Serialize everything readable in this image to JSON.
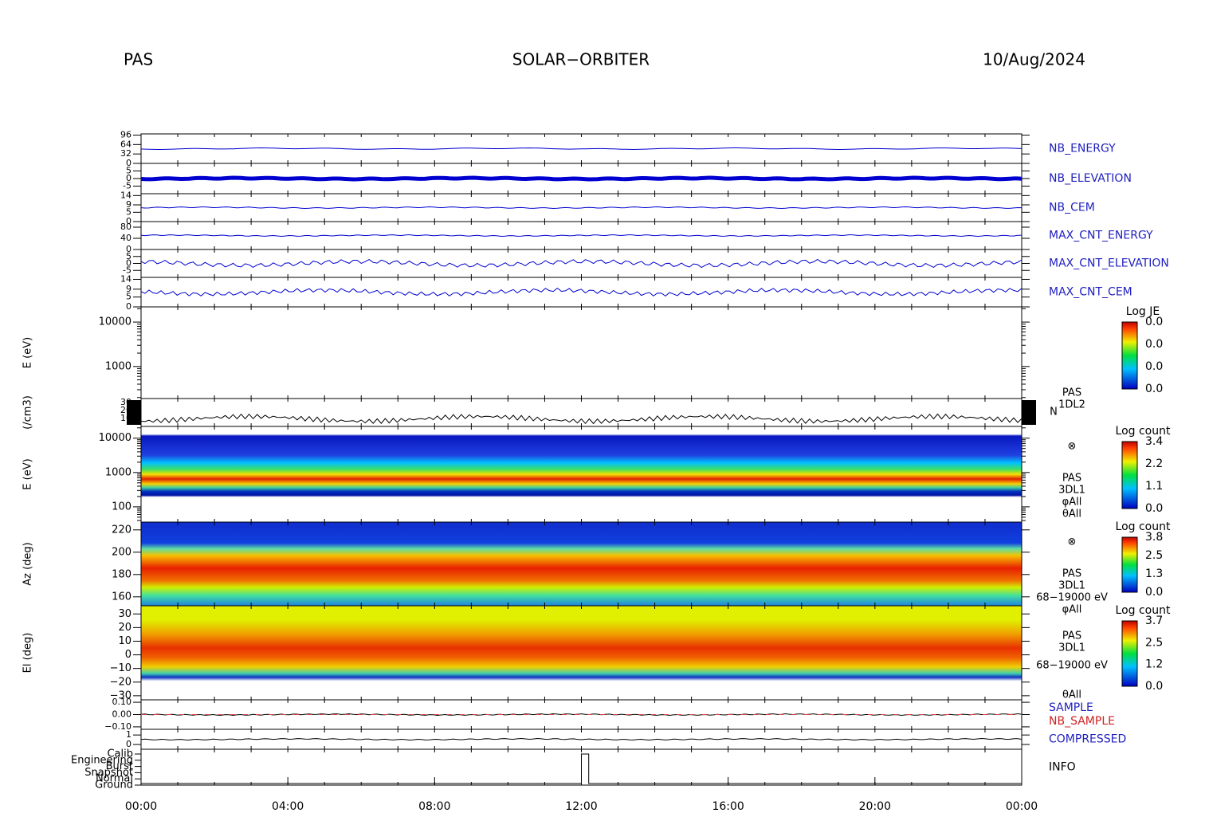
{
  "header": {
    "left": "PAS",
    "center": "SOLAR−ORBITER",
    "right": "10/Aug/2024"
  },
  "time_axis": {
    "xlim": [
      0,
      24
    ],
    "xticks": [
      {
        "value": 0,
        "label": "00:00"
      },
      {
        "value": 4,
        "label": "04:00"
      },
      {
        "value": 8,
        "label": "08:00"
      },
      {
        "value": 12,
        "label": "12:00"
      },
      {
        "value": 16,
        "label": "16:00"
      },
      {
        "value": 20,
        "label": "20:00"
      },
      {
        "value": 24,
        "label": "00:00"
      }
    ]
  },
  "panels": [
    {
      "kind": "line",
      "labels": [
        "NB_ENERGY"
      ],
      "label_colors": [
        "#2020c0"
      ],
      "ylim": [
        0,
        100
      ],
      "yticks": [
        0,
        32,
        64,
        96
      ]
    },
    {
      "kind": "line",
      "labels": [
        "NB_ELEVATION"
      ],
      "label_colors": [
        "#2020c0"
      ],
      "ylim": [
        -10,
        10
      ],
      "yticks": [
        -5,
        0,
        5
      ]
    },
    {
      "kind": "line",
      "labels": [
        "NB_CEM"
      ],
      "label_colors": [
        "#2020c0"
      ],
      "ylim": [
        0,
        15
      ],
      "yticks": [
        0,
        5,
        9,
        14
      ]
    },
    {
      "kind": "line",
      "labels": [
        "MAX_CNT_ENERGY"
      ],
      "label_colors": [
        "#2020c0"
      ],
      "ylim": [
        0,
        100
      ],
      "yticks": [
        0,
        40,
        80
      ]
    },
    {
      "kind": "line",
      "labels": [
        "MAX_CNT_ELEVATION"
      ],
      "label_colors": [
        "#2020c0"
      ],
      "ylim": [
        -10,
        10
      ],
      "yticks": [
        -5,
        0,
        5
      ]
    },
    {
      "kind": "line",
      "labels": [
        "MAX_CNT_CEM"
      ],
      "label_colors": [
        "#2020c0"
      ],
      "ylim": [
        0,
        15
      ],
      "yticks": [
        0,
        5,
        9,
        14
      ]
    },
    {
      "kind": "empty",
      "ytitle": "E (eV)",
      "log": true,
      "ylim": [
        190,
        22000
      ],
      "yticks": [
        1000,
        10000
      ],
      "colorbar": {
        "title": "Log JE",
        "labels": [
          "0.0",
          "0.0",
          "0.0",
          "0.0"
        ]
      }
    },
    {
      "kind": "density",
      "ytitle": "(/cm3)",
      "labels": [
        "PAS",
        "1DL2",
        "N"
      ],
      "ylim": [
        0,
        35
      ],
      "yticks": [
        10,
        20,
        30
      ]
    },
    {
      "kind": "spectrogram",
      "ytitle": "E (eV)",
      "log": true,
      "ylim": [
        36,
        22000
      ],
      "yticks": [
        100,
        1000,
        10000
      ],
      "labels": [
        "⊗",
        "PAS",
        "3DL1",
        "φAll",
        "θAll"
      ],
      "colorbar": {
        "title": "Log count",
        "labels": [
          "3.4",
          "2.2",
          "1.1",
          "0.0"
        ]
      }
    },
    {
      "kind": "spectrogram",
      "ytitle": "Az (deg)",
      "ylim": [
        152,
        227
      ],
      "yticks": [
        160,
        180,
        200,
        220
      ],
      "labels": [
        "⊗",
        "PAS",
        "3DL1",
        "68−19000 eV",
        "φAll"
      ],
      "colorbar": {
        "title": "Log count",
        "labels": [
          "3.8",
          "2.5",
          "1.3",
          "0.0"
        ]
      }
    },
    {
      "kind": "spectrogram",
      "ytitle": "El (deg)",
      "ylim": [
        -33,
        36
      ],
      "yticks": [
        {
          "value": -30,
          "label": "−30"
        },
        {
          "value": -20,
          "label": "−20"
        },
        {
          "value": -10,
          "label": "−10"
        },
        0,
        10,
        20,
        30
      ],
      "labels": [
        "PAS",
        "3DL1",
        "68−19000 eV",
        "θAll"
      ],
      "colorbar": {
        "title": "Log count",
        "labels": [
          "3.7",
          "2.5",
          "1.2",
          "0.0"
        ]
      }
    },
    {
      "kind": "line",
      "labels": [
        "SAMPLE",
        "NB_SAMPLE"
      ],
      "label_colors": [
        "#2020c0",
        "#d02020"
      ],
      "ylim": [
        -0.12,
        0.12
      ],
      "yticks": [
        {
          "value": -0.1,
          "label": "−0.10"
        },
        {
          "value": 0,
          "label": "0.00"
        },
        {
          "value": 0.1,
          "label": "0.10"
        }
      ]
    },
    {
      "kind": "line",
      "labels": [
        "COMPRESSED"
      ],
      "label_colors": [
        "#2020c0"
      ],
      "ylim": [
        -0.5,
        1.6
      ],
      "yticks": [
        0,
        1
      ]
    },
    {
      "kind": "info",
      "labels": [
        "INFO"
      ],
      "categories": [
        "Calib",
        "Engineering",
        "Burst",
        "Snapshot",
        "Normal",
        "Ground"
      ]
    }
  ]
}
